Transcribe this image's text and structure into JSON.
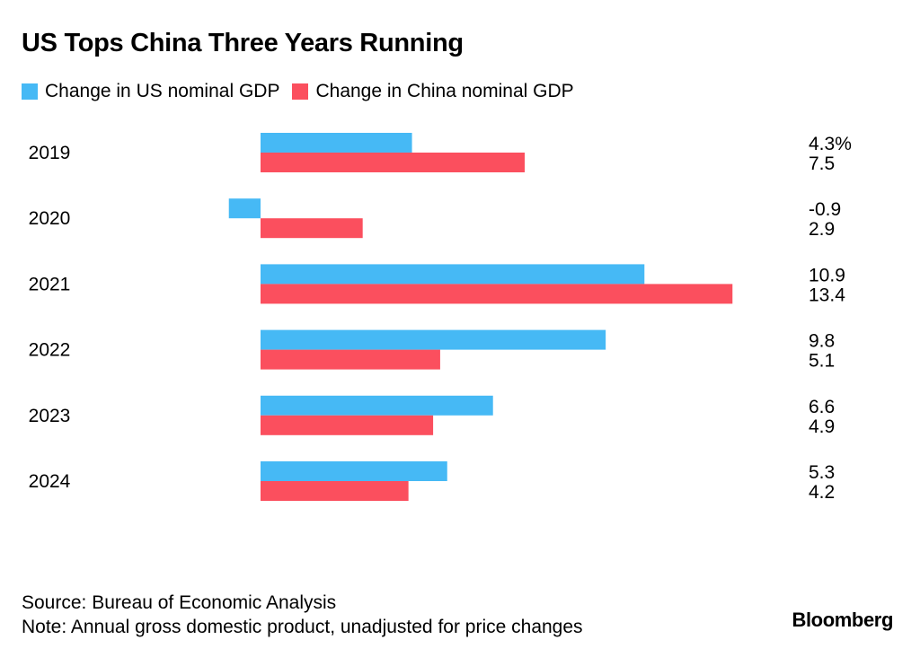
{
  "title": "US Tops China Three Years Running",
  "legend": [
    {
      "label": "Change in US nominal GDP",
      "color": "#46b9f5"
    },
    {
      "label": "Change in China nominal GDP",
      "color": "#fb4f5e"
    }
  ],
  "chart_data": {
    "type": "bar",
    "orientation": "horizontal",
    "categories": [
      "2019",
      "2020",
      "2021",
      "2022",
      "2023",
      "2024"
    ],
    "series": [
      {
        "name": "Change in US nominal GDP",
        "color": "#46b9f5",
        "values": [
          4.3,
          -0.9,
          10.9,
          9.8,
          6.6,
          5.3
        ]
      },
      {
        "name": "Change in China nominal GDP",
        "color": "#fb4f5e",
        "values": [
          7.5,
          2.9,
          13.4,
          5.1,
          4.9,
          4.2
        ]
      }
    ],
    "value_labels": [
      [
        "4.3%",
        "7.5"
      ],
      [
        "-0.9",
        "2.9"
      ],
      [
        "10.9",
        "13.4"
      ],
      [
        "9.8",
        "5.1"
      ],
      [
        "6.6",
        "4.9"
      ],
      [
        "5.3",
        "4.2"
      ]
    ],
    "unit": "%",
    "xlim": [
      -0.9,
      13.4
    ],
    "grid": false
  },
  "footer": {
    "source": "Source: Bureau of Economic Analysis",
    "note": "Note: Annual gross domestic product, unadjusted for price changes"
  },
  "brand": "Bloomberg"
}
